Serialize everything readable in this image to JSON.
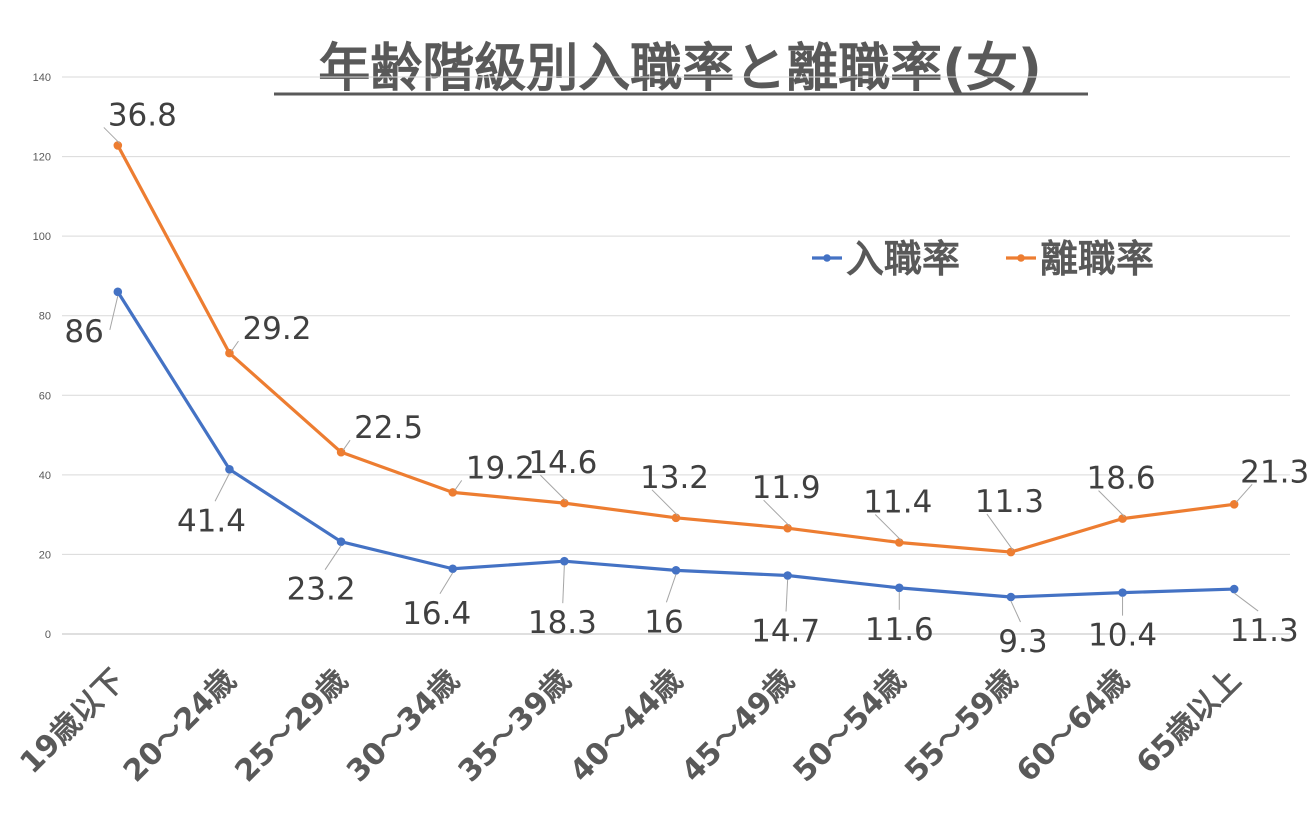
{
  "chart_data": {
    "type": "line",
    "title": "年齢階級別入職率と離職率(女)",
    "categories": [
      "19歳以下",
      "20～24歳",
      "25～29歳",
      "30～34歳",
      "35～39歳",
      "40～44歳",
      "45～49歳",
      "50～54歳",
      "55～59歳",
      "60～64歳",
      "65歳以上"
    ],
    "series": [
      {
        "name": "入職率",
        "color": "#4472C4",
        "values": [
          86,
          41.4,
          23.2,
          16.4,
          18.3,
          16,
          14.7,
          11.6,
          9.3,
          10.4,
          11.3
        ],
        "data_labels": [
          "86",
          "41.4",
          "23.2",
          "16.4",
          "18.3",
          "16",
          "14.7",
          "11.6",
          "9.3",
          "10.4",
          "11.3"
        ]
      },
      {
        "name": "離職率",
        "color": "#ED7D31",
        "values": [
          122.8,
          70.6,
          45.7,
          35.6,
          32.9,
          29.2,
          26.6,
          23.0,
          20.6,
          29.0,
          32.6
        ],
        "data_labels": [
          "36.8",
          "29.2",
          "22.5",
          "19.2",
          "14.6",
          "13.2",
          "11.9",
          "11.4",
          "11.3",
          "18.6",
          "21.3"
        ]
      }
    ],
    "yticks": [
      "0",
      "20",
      "40",
      "60",
      "80",
      "100",
      "120",
      "140"
    ],
    "ylim": [
      0,
      140
    ],
    "xlabel": "",
    "ylabel": "",
    "grid": true,
    "legend_position": "upper-right"
  }
}
